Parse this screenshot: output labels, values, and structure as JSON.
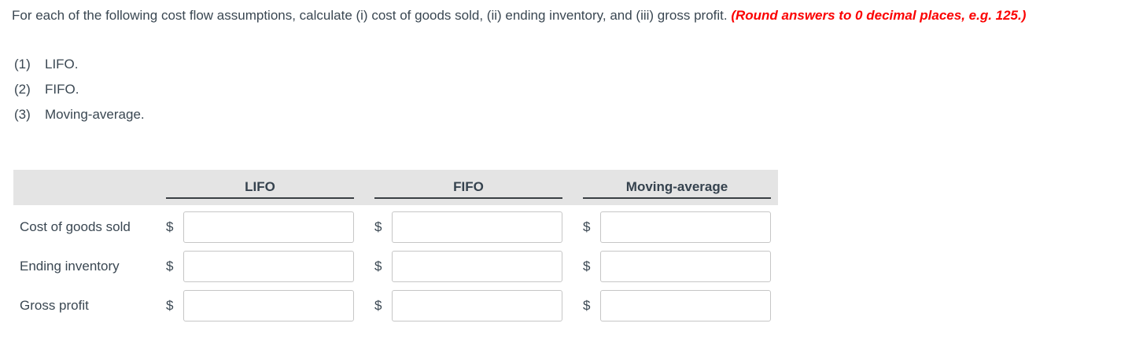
{
  "question": {
    "text": "For each of the following cost flow assumptions, calculate (i) cost of goods sold, (ii) ending inventory, and (iii) gross profit. ",
    "note": "(Round answers to 0 decimal places, e.g. 125.)"
  },
  "assumptions": [
    {
      "number": "(1)",
      "label": "LIFO."
    },
    {
      "number": "(2)",
      "label": "FIFO."
    },
    {
      "number": "(3)",
      "label": "Moving-average."
    }
  ],
  "table": {
    "currency_symbol": "$",
    "columns": [
      "LIFO",
      "FIFO",
      "Moving-average"
    ],
    "rows": [
      {
        "label": "Cost of goods sold",
        "values": [
          "",
          "",
          ""
        ]
      },
      {
        "label": "Ending inventory",
        "values": [
          "",
          "",
          ""
        ]
      },
      {
        "label": "Gross profit",
        "values": [
          "",
          "",
          ""
        ]
      }
    ]
  },
  "colors": {
    "body_text": "#3a4752",
    "note_red": "#fb0000",
    "header_band_bg": "#e4e4e4",
    "header_underline": "#3a3f44",
    "input_border": "#c6c6c6"
  }
}
